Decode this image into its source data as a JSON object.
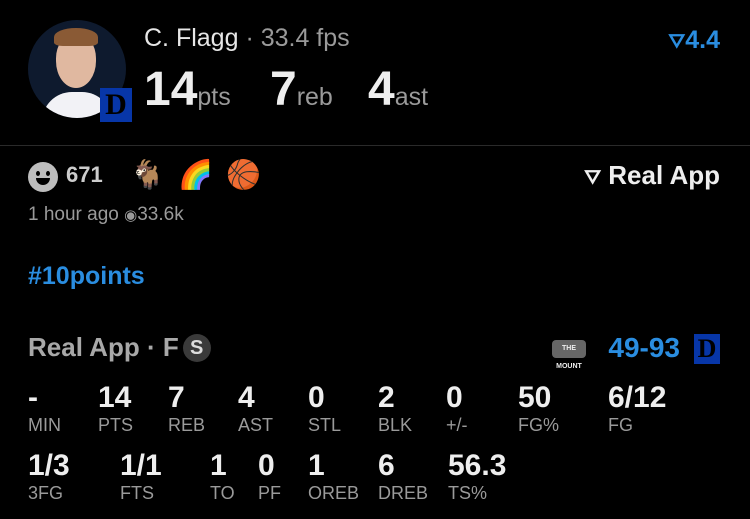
{
  "header": {
    "player_name": "C. Flagg",
    "fps": "· 33.4 fps",
    "points": "14",
    "points_unit": "pts",
    "rebounds": "7",
    "rebounds_unit": "reb",
    "assists": "4",
    "assists_unit": "ast",
    "rating": "4.4",
    "team_logo": "D"
  },
  "social": {
    "reaction_count": "671",
    "emojis": [
      "🐐",
      "🌈",
      "🏀"
    ],
    "brand": "Real App",
    "time": "1 hour ago",
    "views": "33.6k"
  },
  "hashtag": "#10points",
  "game": {
    "source": "Real App · F",
    "badge": "S",
    "opponent_logo": "THE MOUNT",
    "score": "49-93",
    "team_logo": "D"
  },
  "stats_row1": [
    {
      "value": "-",
      "label": "MIN"
    },
    {
      "value": "14",
      "label": "PTS"
    },
    {
      "value": "7",
      "label": "REB"
    },
    {
      "value": "4",
      "label": "AST"
    },
    {
      "value": "0",
      "label": "STL"
    },
    {
      "value": "2",
      "label": "BLK"
    },
    {
      "value": "0",
      "label": "+/-"
    },
    {
      "value": "50",
      "label": "FG%"
    },
    {
      "value": "6/12",
      "label": "FG"
    }
  ],
  "stats_row2": [
    {
      "value": "1/3",
      "label": "3FG"
    },
    {
      "value": "1/1",
      "label": "FTS"
    },
    {
      "value": "1",
      "label": "TO"
    },
    {
      "value": "0",
      "label": "PF"
    },
    {
      "value": "1",
      "label": "OREB"
    },
    {
      "value": "6",
      "label": "DREB"
    },
    {
      "value": "56.3",
      "label": "TS%"
    }
  ],
  "colors": {
    "accent": "#2a8de0",
    "duke_blue": "#0736a8",
    "background": "#000000"
  }
}
